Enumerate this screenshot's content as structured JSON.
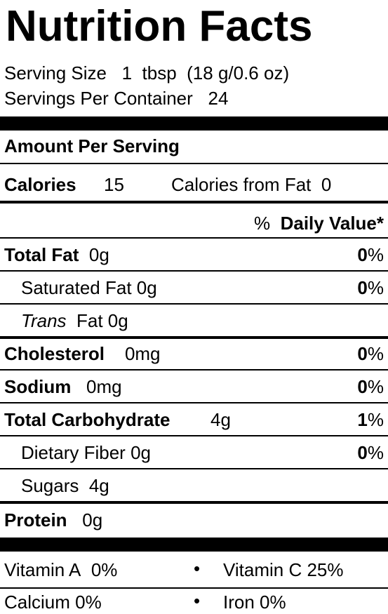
{
  "title": "Nutrition Facts",
  "serving": {
    "size_label": "Serving Size",
    "size_value": "1  tbsp  (18 g/0.6 oz)",
    "per_container_label": "Servings Per Container",
    "per_container_value": "24"
  },
  "amount_per_serving": "Amount Per Serving",
  "calories": {
    "label": "Calories",
    "value": "15",
    "from_fat_label": "Calories from Fat",
    "from_fat_value": "0"
  },
  "daily_value_header": {
    "pct": "%",
    "label": "Daily Value*"
  },
  "nutrients": {
    "total_fat": {
      "label": "Total Fat",
      "amount": "0g",
      "dv": "0",
      "dv_unit": "%"
    },
    "saturated_fat": {
      "label": "Saturated Fat",
      "amount": "0g",
      "dv": "0",
      "dv_unit": "%"
    },
    "trans_fat": {
      "label_italic": "Trans",
      "label": "Fat",
      "amount": "0g"
    },
    "cholesterol": {
      "label": "Cholesterol",
      "amount": "0mg",
      "dv": "0",
      "dv_unit": "%"
    },
    "sodium": {
      "label": "Sodium",
      "amount": "0mg",
      "dv": "0",
      "dv_unit": "%"
    },
    "total_carbohydrate": {
      "label": "Total Carbohydrate",
      "amount": "4g",
      "dv": "1",
      "dv_unit": "%"
    },
    "dietary_fiber": {
      "label": "Dietary Fiber",
      "amount": "0g",
      "dv": "0",
      "dv_unit": "%"
    },
    "sugars": {
      "label": "Sugars",
      "amount": "4g"
    },
    "protein": {
      "label": "Protein",
      "amount": "0g"
    }
  },
  "vitamins": {
    "vitamin_a": {
      "label": "Vitamin A",
      "value": "0%"
    },
    "vitamin_c": {
      "label": "Vitamin C",
      "value": "25%"
    },
    "calcium": {
      "label": "Calcium",
      "value": "0%"
    },
    "iron": {
      "label": "Iron",
      "value": "0%"
    },
    "bullet": "•"
  }
}
